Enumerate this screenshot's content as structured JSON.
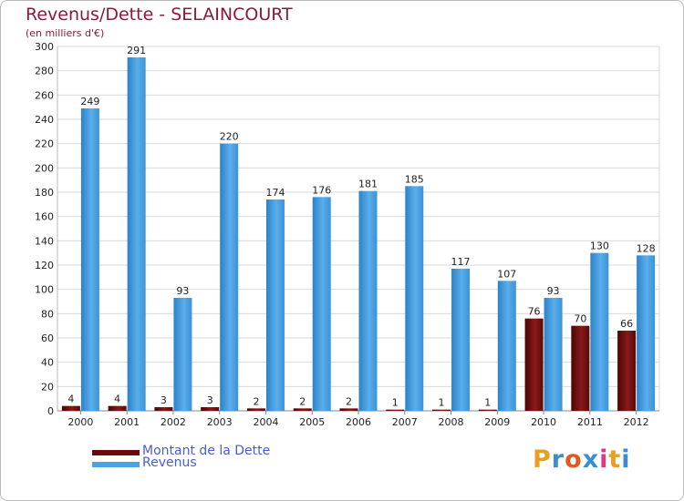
{
  "chart_data": {
    "type": "bar",
    "title": "Revenus/Dette - SELAINCOURT",
    "subtitle": "(en milliers d'€)",
    "categories": [
      "2000",
      "2001",
      "2002",
      "2003",
      "2004",
      "2005",
      "2006",
      "2007",
      "2008",
      "2009",
      "2010",
      "2011",
      "2012"
    ],
    "series": [
      {
        "name": "Montant de la Dette",
        "color": "#6b0a0a",
        "values": [
          4,
          4,
          3,
          3,
          2,
          2,
          2,
          1,
          1,
          1,
          76,
          70,
          66
        ]
      },
      {
        "name": "Revenus",
        "color": "#4aa3e6",
        "values": [
          249,
          291,
          93,
          220,
          174,
          176,
          181,
          185,
          117,
          107,
          93,
          130,
          128
        ]
      }
    ],
    "yticks": [
      0,
      20,
      40,
      60,
      80,
      100,
      120,
      140,
      160,
      180,
      200,
      220,
      240,
      260,
      280,
      300
    ],
    "ylim": [
      0,
      300
    ],
    "grid": true,
    "legend_position": "bottom-left"
  },
  "legend": {
    "debt_label": "Montant de la Dette",
    "revenue_label": "Revenus"
  },
  "logo": {
    "letters": [
      "P",
      "r",
      "o",
      "x",
      "i",
      "t",
      "i"
    ],
    "colors": [
      "#e8a020",
      "#3a8ed0",
      "#e05a20",
      "#3a8ed0",
      "#e03a7a",
      "#e8a020",
      "#3a8ed0"
    ]
  }
}
